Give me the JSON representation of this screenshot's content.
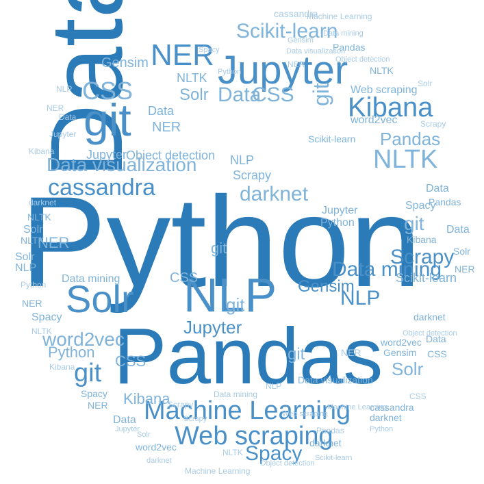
{
  "palette": {
    "dark": "#2b7bb9",
    "mid": "#4a90c8",
    "light": "#7fb3da",
    "pale": "#a9cbe6"
  },
  "words": [
    "Python",
    "Data",
    "Pandas",
    "Jupyter",
    "NLP",
    "Machine Learning",
    "Web scraping",
    "git",
    "Solr",
    "Kibana",
    "NER",
    "Scikit-learn",
    "CSS",
    "cassandra",
    "Data visualization",
    "NLTK",
    "Data mining",
    "darknet",
    "Scrapy",
    "word2vec",
    "Spacy",
    "Gensim",
    "Object detection"
  ]
}
